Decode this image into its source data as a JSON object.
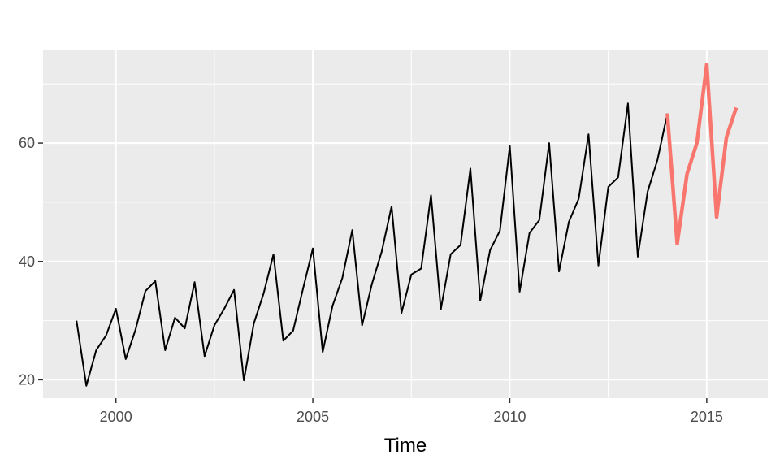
{
  "chart_data": {
    "type": "line",
    "title": "",
    "xlabel": "Time",
    "ylabel": "",
    "xlim": [
      1998.15,
      2016.55
    ],
    "ylim": [
      16.9,
      75.8
    ],
    "x_ticks": [
      2000,
      2005,
      2010,
      2015
    ],
    "y_ticks": [
      20,
      40,
      60
    ],
    "grid": true,
    "background": "#ebebeb",
    "series": [
      {
        "color": "#000000",
        "x": [
          1999.0,
          1999.25,
          1999.5,
          1999.75,
          2000.0,
          2000.25,
          2000.5,
          2000.75,
          2001.0,
          2001.25,
          2001.5,
          2001.75,
          2002.0,
          2002.25,
          2002.5,
          2002.75,
          2003.0,
          2003.25,
          2003.5,
          2003.75,
          2004.0,
          2004.25,
          2004.5,
          2004.75,
          2005.0,
          2005.25,
          2005.5,
          2005.75,
          2006.0,
          2006.25,
          2006.5,
          2006.75,
          2007.0,
          2007.25,
          2007.5,
          2007.75,
          2008.0,
          2008.25,
          2008.5,
          2008.75,
          2009.0,
          2009.25,
          2009.5,
          2009.75,
          2010.0,
          2010.25,
          2010.5,
          2010.75,
          2011.0,
          2011.25,
          2011.5,
          2011.75,
          2012.0,
          2012.25,
          2012.5,
          2012.75,
          2013.0,
          2013.25,
          2013.5,
          2013.75,
          2014.0
        ],
        "values": [
          30.0,
          19.0,
          25.0,
          27.5,
          32.0,
          23.5,
          28.5,
          35.0,
          36.7,
          25.0,
          30.5,
          28.7,
          36.5,
          24.0,
          29.2,
          32.0,
          35.2,
          19.9,
          29.5,
          34.6,
          41.2,
          26.6,
          28.3,
          35.4,
          42.2,
          24.7,
          32.5,
          37.2,
          45.3,
          29.2,
          36.2,
          41.7,
          49.3,
          31.3,
          37.8,
          38.8,
          51.2,
          31.9,
          41.2,
          42.8,
          55.7,
          33.4,
          41.9,
          45.2,
          59.5,
          34.9,
          44.8,
          47.0,
          60.0,
          38.3,
          46.7,
          50.6,
          61.5,
          39.3,
          52.6,
          54.2,
          66.7,
          40.8,
          51.8,
          57.2,
          65.0
        ],
        "stroke": 2
      },
      {
        "color": "#f8766d",
        "x": [
          2014.0,
          2014.25,
          2014.5,
          2014.75,
          2015.0,
          2015.25,
          2015.5,
          2015.75
        ],
        "values": [
          65.0,
          43.0,
          54.8,
          60.0,
          73.3,
          47.5,
          61.0,
          66.0
        ],
        "stroke": 4.5
      }
    ]
  }
}
